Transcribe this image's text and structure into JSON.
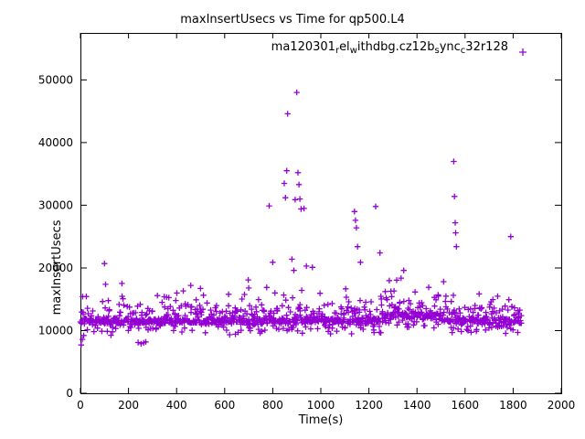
{
  "chart_data": {
    "type": "scatter",
    "title": "maxInsertUsecs vs Time for qp500.L4",
    "xlabel": "Time(s)",
    "ylabel": "maxInsertUsecs",
    "xlim": [
      0,
      2000
    ],
    "ylim": [
      0,
      57500
    ],
    "xticks": [
      0,
      200,
      400,
      600,
      800,
      1000,
      1200,
      1400,
      1600,
      1800,
      2000
    ],
    "yticks": [
      0,
      10000,
      20000,
      30000,
      40000,
      50000
    ],
    "grid": false,
    "legend_position": "top-right-inside",
    "marker": "plus",
    "color": "#9400d3",
    "legend_segments": [
      {
        "text": "ma120301"
      },
      {
        "text": "r",
        "sub": true
      },
      {
        "text": "el"
      },
      {
        "text": "w",
        "sub": true
      },
      {
        "text": "ithdbg.cz12b"
      },
      {
        "text": "s",
        "sub": true
      },
      {
        "text": "ync"
      },
      {
        "text": "c",
        "sub": true
      },
      {
        "text": "32r128"
      }
    ],
    "series_name_segments_note": "gnuplot enhanced-text rendering of ma120301_rel_withdbg.cz12b_sync_c32r128",
    "band": {
      "description": "dense noise band of insert latencies",
      "seed": 1337,
      "count": 1100,
      "t_start": 2,
      "t_end": 1835,
      "t_jitter": 3,
      "clamp": [
        7900,
        19600
      ],
      "mixture": [
        {
          "w": 0.5,
          "mean": 11500,
          "sd": 300
        },
        {
          "w": 0.27,
          "mean": 12700,
          "sd": 800
        },
        {
          "w": 0.13,
          "mean": 10300,
          "sd": 450
        },
        {
          "w": 0.08,
          "mean": 14600,
          "sd": 1000
        },
        {
          "w": 0.02,
          "mean": 16300,
          "sd": 1200
        }
      ],
      "bump": {
        "from": 1250,
        "to": 1500,
        "add": 900
      }
    },
    "outliers": [
      [
        3,
        7700
      ],
      [
        8,
        8600
      ],
      [
        100,
        20700
      ],
      [
        240,
        8100
      ],
      [
        252,
        7900
      ],
      [
        263,
        8050
      ],
      [
        272,
        8200
      ],
      [
        700,
        16800
      ],
      [
        785,
        29900
      ],
      [
        800,
        20900
      ],
      [
        848,
        33500
      ],
      [
        853,
        31200
      ],
      [
        858,
        35500
      ],
      [
        862,
        44600
      ],
      [
        880,
        21400
      ],
      [
        888,
        19600
      ],
      [
        893,
        30900
      ],
      [
        900,
        48000
      ],
      [
        905,
        35200
      ],
      [
        909,
        33300
      ],
      [
        913,
        31000
      ],
      [
        918,
        29400
      ],
      [
        930,
        29500
      ],
      [
        940,
        20300
      ],
      [
        965,
        20100
      ],
      [
        1140,
        29000
      ],
      [
        1144,
        27600
      ],
      [
        1148,
        26400
      ],
      [
        1153,
        23400
      ],
      [
        1165,
        20900
      ],
      [
        1228,
        29800
      ],
      [
        1246,
        22400
      ],
      [
        1553,
        37000
      ],
      [
        1556,
        31400
      ],
      [
        1559,
        27200
      ],
      [
        1561,
        25600
      ],
      [
        1564,
        23400
      ],
      [
        1790,
        25000
      ]
    ]
  }
}
